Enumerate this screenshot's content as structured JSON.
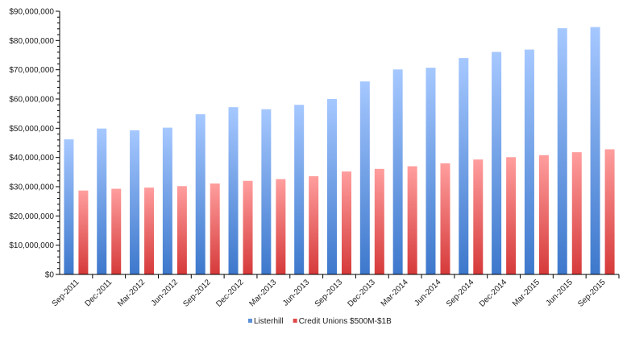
{
  "chart_data": {
    "type": "bar",
    "categories": [
      "Sep-2011",
      "Dec-2011",
      "Mar-2012",
      "Jun-2012",
      "Sep-2012",
      "Dec-2012",
      "Mar-2013",
      "Jun-2013",
      "Sep-2013",
      "Dec-2013",
      "Mar-2014",
      "Jun-2014",
      "Sep-2014",
      "Dec-2014",
      "Mar-2015",
      "Jun-2015",
      "Sep-2015"
    ],
    "series": [
      {
        "name": "Listerhill",
        "color": "#5b8fd6",
        "values": [
          46200000,
          49900000,
          49300000,
          50200000,
          54800000,
          57200000,
          56500000,
          58000000,
          60000000,
          66000000,
          70100000,
          70700000,
          74000000,
          76100000,
          76900000,
          84200000,
          84600000
        ]
      },
      {
        "name": "Credit Unions $500M-$1B",
        "color": "#e04848",
        "values": [
          28700000,
          29300000,
          29700000,
          30200000,
          31100000,
          32000000,
          32600000,
          33600000,
          35200000,
          36100000,
          37000000,
          38000000,
          39300000,
          40100000,
          40800000,
          41800000,
          42800000
        ]
      }
    ],
    "y_ticks": [
      {
        "value": 0,
        "label": "$0"
      },
      {
        "value": 10000000,
        "label": "$10,000,000"
      },
      {
        "value": 20000000,
        "label": "$20,000,000"
      },
      {
        "value": 30000000,
        "label": "$30,000,000"
      },
      {
        "value": 40000000,
        "label": "$40,000,000"
      },
      {
        "value": 50000000,
        "label": "$50,000,000"
      },
      {
        "value": 60000000,
        "label": "$60,000,000"
      },
      {
        "value": 70000000,
        "label": "$70,000,000"
      },
      {
        "value": 80000000,
        "label": "$80,000,000"
      },
      {
        "value": 90000000,
        "label": "$90,000,000"
      }
    ],
    "ylim": [
      0,
      90000000
    ],
    "title": "",
    "xlabel": "",
    "ylabel": "",
    "legend_position": "bottom",
    "grid": false
  }
}
